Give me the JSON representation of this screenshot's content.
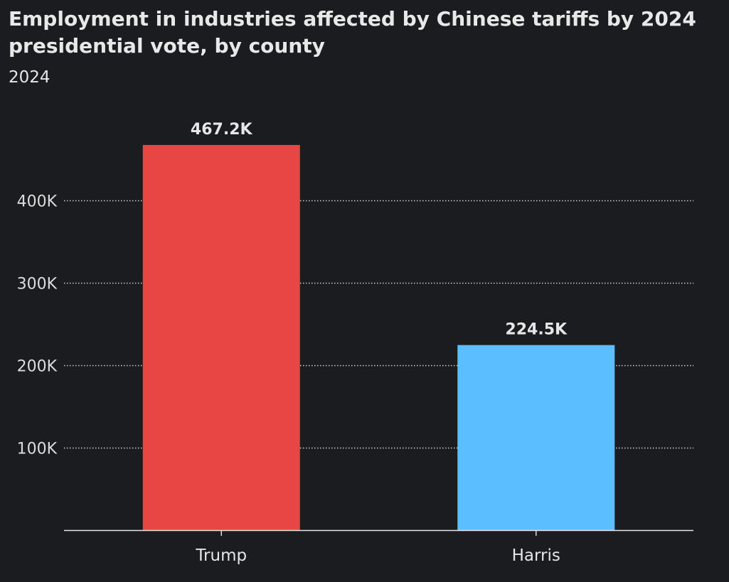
{
  "chart_data": {
    "type": "bar",
    "title": "Employment in industries affected by Chinese tariffs by 2024 presidential vote, by county",
    "subtitle": "2024",
    "categories": [
      "Trump",
      "Harris"
    ],
    "values": [
      467200,
      224500
    ],
    "data_labels": [
      "467.2K",
      "224.5K"
    ],
    "bar_colors": [
      "#e84545",
      "#5bbfff"
    ],
    "yticks": [
      100000,
      200000,
      300000,
      400000
    ],
    "ytick_labels": [
      "100K",
      "200K",
      "300K",
      "400K"
    ],
    "ylim": [
      0,
      467200
    ],
    "grid": "horizontal dotted",
    "xlabel": "",
    "ylabel": ""
  }
}
